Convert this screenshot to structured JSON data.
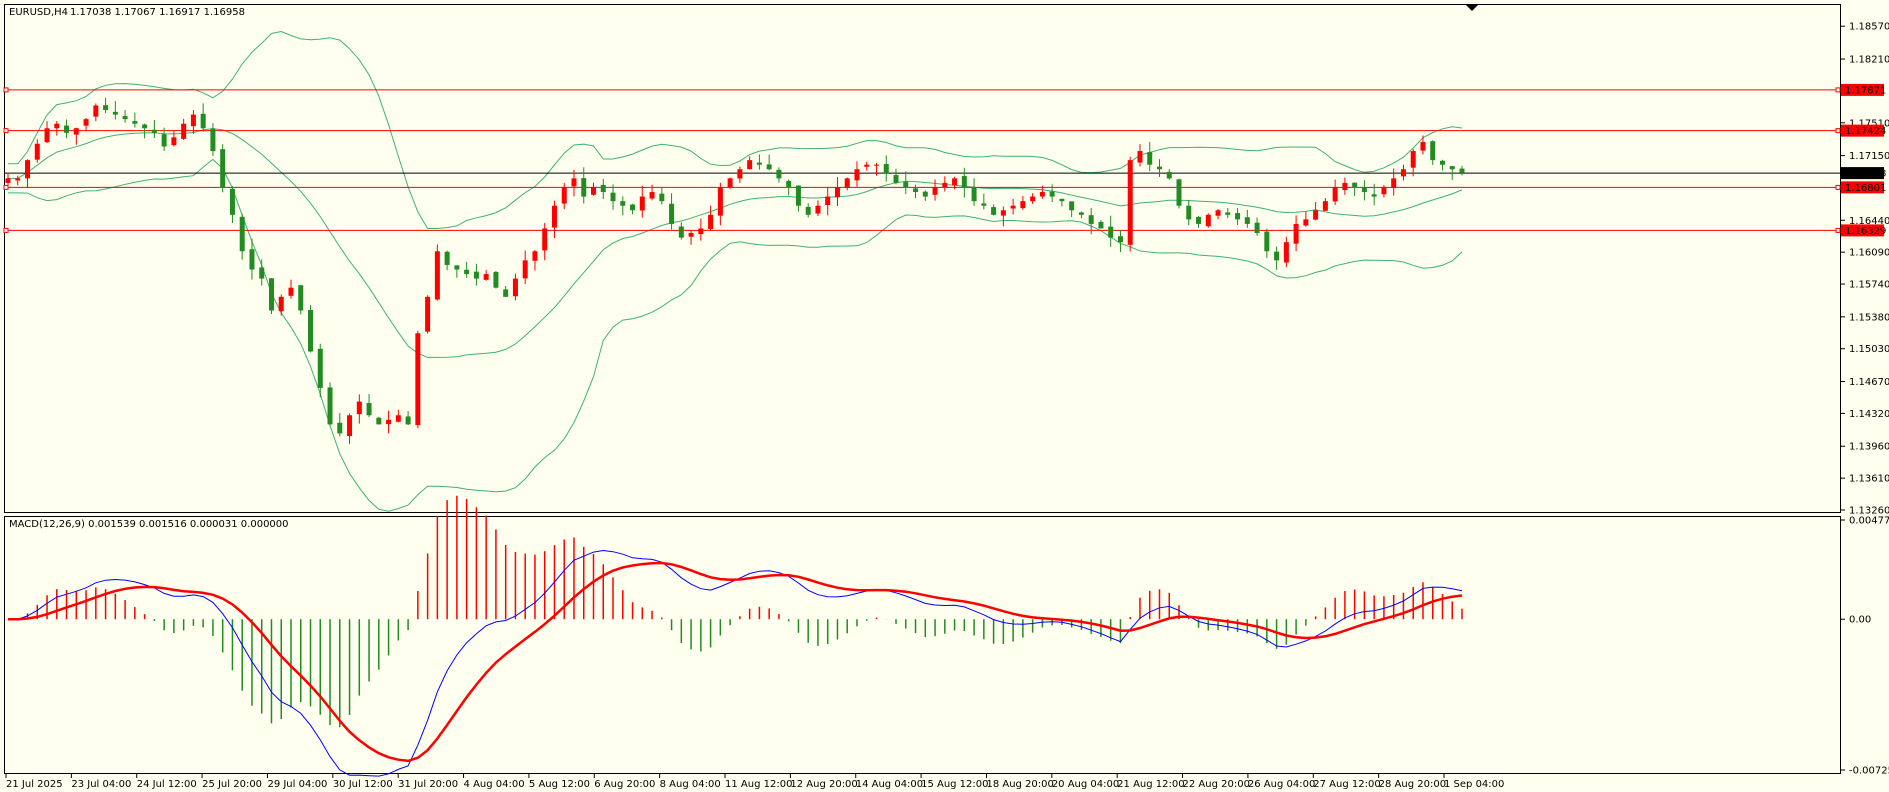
{
  "colors": {
    "background": "#fffff0",
    "bull": "#ff0000",
    "bear": "#228b22",
    "bands": "#3cb371",
    "hline": "#ff0000",
    "price_line": "#000000",
    "macd_line": "#0000ff",
    "signal_line": "#ff0000",
    "hist_pos": "#ff0000",
    "hist_neg": "#228b22"
  },
  "header": {
    "symbol_tf": "EURUSD,H4",
    "ohlc": "1.17038 1.17067 1.16917 1.16958"
  },
  "price_panel": {
    "axis_ticks": [
      "1.18570",
      "1.18210",
      "1.17510",
      "1.17150",
      "1.16440",
      "1.16090",
      "1.15740",
      "1.15380",
      "1.15030",
      "1.14670",
      "1.14320",
      "1.13960",
      "1.13610",
      "1.13260"
    ],
    "current_price": "1.16958",
    "levels": [
      "1.17871",
      "1.17424",
      "1.16801",
      "1.16329"
    ]
  },
  "macd_panel": {
    "title": "MACD(12,26,9) 0.001539 0.001516 0.000031 0.000000",
    "axis_ticks": [
      "0.004774",
      "0.00",
      "-0.007257"
    ]
  },
  "time_axis": [
    "21 Jul 2025",
    "23 Jul 04:00",
    "24 Jul 12:00",
    "25 Jul 20:00",
    "29 Jul 04:00",
    "30 Jul 12:00",
    "31 Jul 20:00",
    "4 Aug 04:00",
    "5 Aug 12:00",
    "6 Aug 20:00",
    "8 Aug 04:00",
    "11 Aug 12:00",
    "12 Aug 20:00",
    "14 Aug 04:00",
    "15 Aug 12:00",
    "18 Aug 20:00",
    "20 Aug 04:00",
    "21 Aug 12:00",
    "22 Aug 20:00",
    "26 Aug 04:00",
    "27 Aug 12:00",
    "28 Aug 20:00",
    "1 Sep 04:00"
  ],
  "chart_data": {
    "type": "candlestick",
    "symbol": "EURUSD",
    "timeframe": "H4",
    "ylim": [
      1.1326,
      1.1877
    ],
    "macd_ylim": [
      -0.007257,
      0.004774
    ],
    "candles_anchor_close": [
      1.169,
      1.169,
      1.171,
      1.1728,
      1.1745,
      1.175,
      1.174,
      1.1745,
      1.1755,
      1.177,
      1.1765,
      1.176,
      1.1755,
      1.175,
      1.1745,
      1.174,
      1.1725,
      1.1735,
      1.175,
      1.176,
      1.1745,
      1.172,
      1.168,
      1.165,
      1.161,
      1.159,
      1.158,
      1.1545,
      1.156,
      1.157,
      1.1545,
      1.15,
      1.146,
      1.142,
      1.141,
      1.143,
      1.1445,
      1.143,
      1.142,
      1.1425,
      1.143,
      1.142,
      1.152,
      1.156,
      1.161,
      1.1595,
      1.159,
      1.1585,
      1.158,
      1.1585,
      1.157,
      1.156,
      1.158,
      1.16,
      1.161,
      1.1635,
      1.166,
      1.168,
      1.169,
      1.167,
      1.168,
      1.1675,
      1.1665,
      1.166,
      1.1655,
      1.167,
      1.1675,
      1.1665,
      1.164,
      1.1625,
      1.163,
      1.1635,
      1.165,
      1.168,
      1.169,
      1.17,
      1.171,
      1.1705,
      1.17,
      1.169,
      1.168,
      1.166,
      1.165,
      1.166,
      1.167,
      1.168,
      1.169,
      1.17,
      1.1705,
      1.1705,
      1.1695,
      1.1685,
      1.168,
      1.1675,
      1.167,
      1.168,
      1.1685,
      1.169,
      1.168,
      1.1665,
      1.166,
      1.165,
      1.1655,
      1.166,
      1.1665,
      1.167,
      1.1675,
      1.167,
      1.1665,
      1.1655,
      1.165,
      1.164,
      1.1635,
      1.1625,
      1.162,
      1.171,
      1.172,
      1.1705,
      1.17,
      1.169,
      1.166,
      1.1645,
      1.164,
      1.165,
      1.1655,
      1.165,
      1.1645,
      1.164,
      1.163,
      1.161,
      1.16,
      1.162,
      1.164,
      1.1645,
      1.1655,
      1.1665,
      1.168,
      1.1685,
      1.168,
      1.1675,
      1.167,
      1.168,
      1.169,
      1.17,
      1.172,
      1.173,
      1.171,
      1.1705,
      1.17,
      1.1696
    ]
  }
}
